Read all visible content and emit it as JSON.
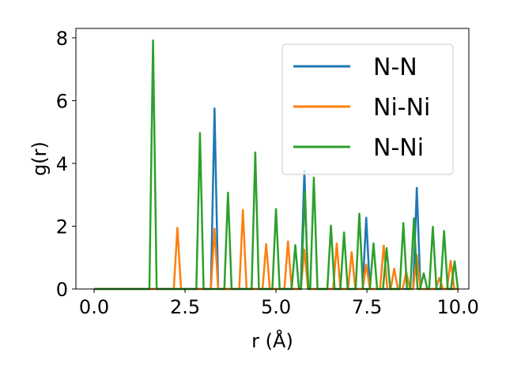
{
  "chart_data": {
    "type": "line",
    "xlabel": "r (Å)",
    "ylabel": "g(r)",
    "xlim": [
      -0.5,
      10.3
    ],
    "ylim": [
      0,
      8.3
    ],
    "xticks": [
      0.0,
      2.5,
      5.0,
      7.5,
      10.0
    ],
    "xtick_labels": [
      "0.0",
      "2.5",
      "5.0",
      "7.5",
      "10.0"
    ],
    "yticks": [
      0,
      2,
      4,
      6,
      8
    ],
    "ytick_labels": [
      "0",
      "2",
      "4",
      "6",
      "8"
    ],
    "legend_position": "top-right",
    "grid": false,
    "peak_half_width": 0.1,
    "x_range": [
      0.0,
      10.0
    ],
    "series": [
      {
        "name": "N-N",
        "color": "#1f77b4",
        "peaks": [
          [
            3.31,
            5.75
          ],
          [
            5.78,
            3.78
          ],
          [
            7.48,
            2.27
          ],
          [
            8.87,
            3.22
          ]
        ]
      },
      {
        "name": "Ni-Ni",
        "color": "#ff7f0e",
        "peaks": [
          [
            2.29,
            1.95
          ],
          [
            3.31,
            1.92
          ],
          [
            4.09,
            2.52
          ],
          [
            4.73,
            1.43
          ],
          [
            5.33,
            1.52
          ],
          [
            5.78,
            1.25
          ],
          [
            6.67,
            1.45
          ],
          [
            7.08,
            1.18
          ],
          [
            7.48,
            0.78
          ],
          [
            7.96,
            1.38
          ],
          [
            8.25,
            0.65
          ],
          [
            8.58,
            0.55
          ],
          [
            8.87,
            1.08
          ],
          [
            9.49,
            0.35
          ],
          [
            9.8,
            0.9
          ]
        ]
      },
      {
        "name": "N-Ni",
        "color": "#2ca02c",
        "peaks": [
          [
            1.62,
            7.92
          ],
          [
            2.91,
            4.97
          ],
          [
            3.68,
            3.07
          ],
          [
            4.43,
            4.35
          ],
          [
            5.0,
            2.55
          ],
          [
            5.53,
            1.4
          ],
          [
            5.79,
            3.1
          ],
          [
            6.04,
            3.55
          ],
          [
            6.51,
            2.02
          ],
          [
            6.87,
            1.8
          ],
          [
            7.29,
            2.4
          ],
          [
            7.68,
            1.45
          ],
          [
            8.04,
            1.3
          ],
          [
            8.5,
            2.1
          ],
          [
            8.79,
            2.25
          ],
          [
            9.06,
            0.5
          ],
          [
            9.31,
            1.98
          ],
          [
            9.62,
            1.85
          ],
          [
            9.91,
            0.88
          ]
        ]
      }
    ]
  }
}
